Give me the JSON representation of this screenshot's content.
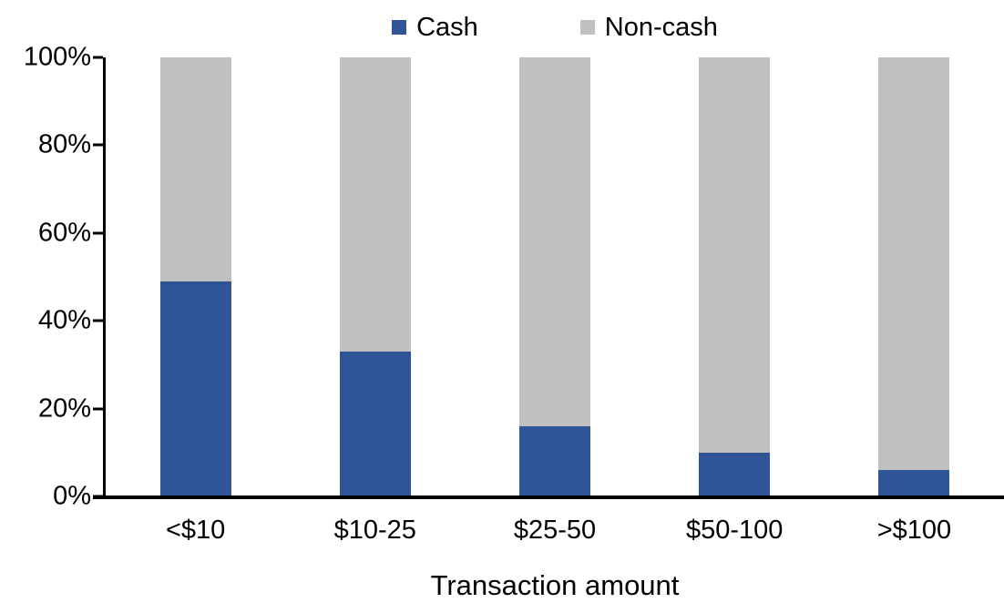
{
  "chart_data": {
    "type": "bar",
    "variant": "stacked-100-percent",
    "title": "",
    "xlabel": "Transaction amount",
    "ylabel": "",
    "categories": [
      "<$10",
      "$10-25",
      "$25-50",
      "$50-100",
      ">$100"
    ],
    "series": [
      {
        "name": "Cash",
        "color": "#2F5596",
        "values": [
          49,
          33,
          16,
          10,
          6
        ]
      },
      {
        "name": "Non-cash",
        "color": "#C0C0C0",
        "values": [
          51,
          67,
          84,
          90,
          94
        ]
      }
    ],
    "y_ticks": [
      {
        "label": "0%",
        "value": 0
      },
      {
        "label": "20%",
        "value": 20
      },
      {
        "label": "40%",
        "value": 40
      },
      {
        "label": "60%",
        "value": 60
      },
      {
        "label": "80%",
        "value": 80
      },
      {
        "label": "100%",
        "value": 100
      }
    ],
    "ylim": [
      0,
      100
    ],
    "grid": false,
    "legend_position": "top-center",
    "axis_color": "#000000",
    "background": "#FFFFFF"
  }
}
